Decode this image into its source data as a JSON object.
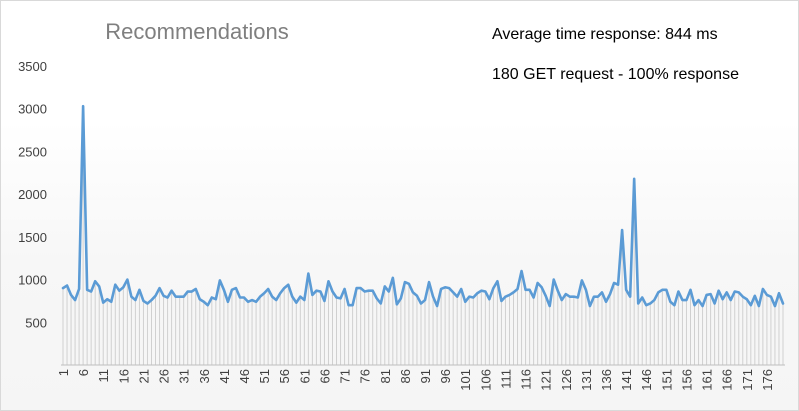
{
  "chart_data": {
    "type": "line",
    "title": "Recommendations",
    "annotations": [
      "Average time response: 844 ms",
      "180 GET request - 100% response"
    ],
    "xlabel": "",
    "ylabel": "",
    "ylim": [
      0,
      3500
    ],
    "yticks": [
      0,
      500,
      1000,
      1500,
      2000,
      2500,
      3000,
      3500
    ],
    "yticks_labeled": [
      500,
      1000,
      1500,
      2000,
      2500,
      3000,
      3500
    ],
    "xlim": [
      1,
      180
    ],
    "xticks": [
      1,
      6,
      11,
      16,
      21,
      26,
      31,
      36,
      41,
      46,
      51,
      56,
      61,
      66,
      71,
      76,
      81,
      86,
      91,
      96,
      101,
      106,
      111,
      116,
      121,
      126,
      131,
      136,
      141,
      146,
      151,
      156,
      161,
      166,
      171,
      176
    ],
    "grid": false,
    "vertical_drop_lines": true,
    "legend": "none",
    "colors": {
      "line": "#5b9bd5",
      "drop_lines": "#d0d0d0",
      "title": "#7f7f7f"
    },
    "series": [
      {
        "values": [
          900,
          930,
          820,
          760,
          890,
          3030,
          880,
          860,
          980,
          920,
          730,
          770,
          740,
          940,
          870,
          910,
          1000,
          800,
          760,
          880,
          750,
          720,
          760,
          810,
          900,
          810,
          790,
          870,
          800,
          800,
          800,
          860,
          860,
          890,
          770,
          740,
          700,
          790,
          770,
          990,
          880,
          740,
          880,
          900,
          790,
          790,
          740,
          760,
          740,
          800,
          840,
          890,
          800,
          760,
          840,
          900,
          940,
          800,
          730,
          800,
          760,
          1070,
          820,
          870,
          860,
          750,
          980,
          860,
          790,
          780,
          890,
          700,
          700,
          900,
          900,
          860,
          870,
          870,
          780,
          720,
          920,
          860,
          1020,
          710,
          780,
          970,
          950,
          850,
          810,
          720,
          760,
          970,
          800,
          690,
          890,
          910,
          900,
          850,
          800,
          890,
          740,
          800,
          790,
          840,
          870,
          860,
          770,
          900,
          980,
          750,
          800,
          820,
          850,
          890,
          1100,
          880,
          880,
          790,
          960,
          910,
          810,
          690,
          1000,
          870,
          760,
          830,
          800,
          800,
          790,
          990,
          880,
          690,
          800,
          800,
          850,
          740,
          830,
          960,
          940,
          1580,
          880,
          800,
          2180,
          720,
          790,
          700,
          720,
          760,
          850,
          880,
          880,
          740,
          700,
          860,
          760,
          760,
          880,
          700,
          760,
          690,
          820,
          830,
          720,
          870,
          770,
          850,
          760,
          860,
          850,
          800,
          770,
          700,
          810,
          690,
          890,
          820,
          800,
          690,
          840,
          720
        ]
      }
    ]
  }
}
